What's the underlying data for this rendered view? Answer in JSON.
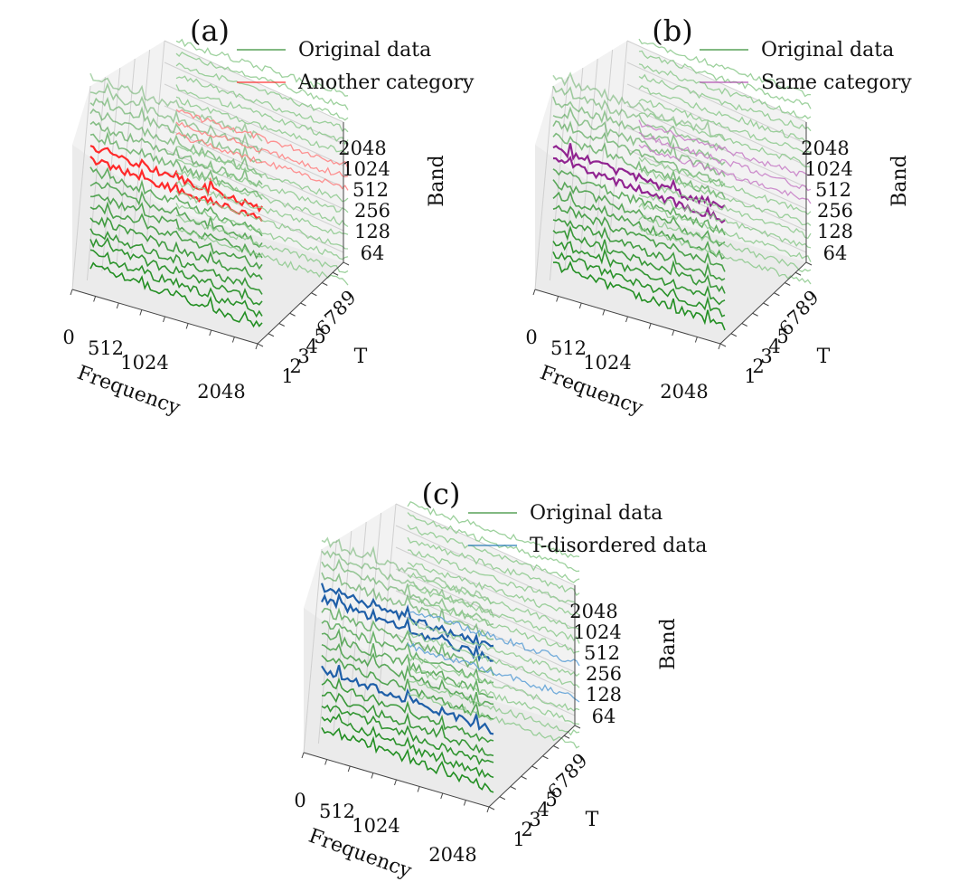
{
  "chart_data": [
    {
      "type": "line",
      "panel_label": "(a)",
      "xlabel": "Frequency",
      "ylabel": "T",
      "zlabel": "Band",
      "x_ticks": [
        "0",
        "512",
        "1024",
        "2048"
      ],
      "t_ticks": [
        "1",
        "2",
        "3",
        "4",
        "5",
        "6",
        "7",
        "8",
        "9"
      ],
      "z_ticks": [
        "64",
        "128",
        "256",
        "512",
        "1024",
        "2048"
      ],
      "legend": [
        {
          "label": "Original data",
          "color": "#2e8b2e"
        },
        {
          "label": "Another category",
          "color": "#ff2a2a"
        }
      ],
      "highlight": {
        "color": "#ff2a2a",
        "rows": [
          6,
          7
        ],
        "pale": false
      }
    },
    {
      "type": "line",
      "panel_label": "(b)",
      "xlabel": "Frequency",
      "ylabel": "T",
      "zlabel": "Band",
      "x_ticks": [
        "0",
        "512",
        "1024",
        "2048"
      ],
      "t_ticks": [
        "1",
        "2",
        "3",
        "4",
        "5",
        "6",
        "7",
        "8",
        "9"
      ],
      "z_ticks": [
        "64",
        "128",
        "256",
        "512",
        "1024",
        "2048"
      ],
      "legend": [
        {
          "label": "Original data",
          "color": "#2e8b2e"
        },
        {
          "label": "Same category",
          "color": "#b04fb0"
        }
      ],
      "highlight": {
        "color": "#800080",
        "rows": [
          6,
          7
        ],
        "pale": true
      }
    },
    {
      "type": "line",
      "panel_label": "(c)",
      "xlabel": "Frequency",
      "ylabel": "T",
      "zlabel": "Band",
      "x_ticks": [
        "0",
        "512",
        "1024",
        "2048"
      ],
      "t_ticks": [
        "1",
        "2",
        "3",
        "4",
        "5",
        "6",
        "7",
        "8",
        "9"
      ],
      "z_ticks": [
        "64",
        "128",
        "256",
        "512",
        "1024",
        "2048"
      ],
      "legend": [
        {
          "label": "Original data",
          "color": "#2e8b2e"
        },
        {
          "label": "T-disordered data",
          "color": "#1f77b4"
        }
      ],
      "highlight": {
        "color": "#1f5fa8",
        "rows": [
          4,
          5,
          11
        ],
        "pale": false
      }
    }
  ]
}
